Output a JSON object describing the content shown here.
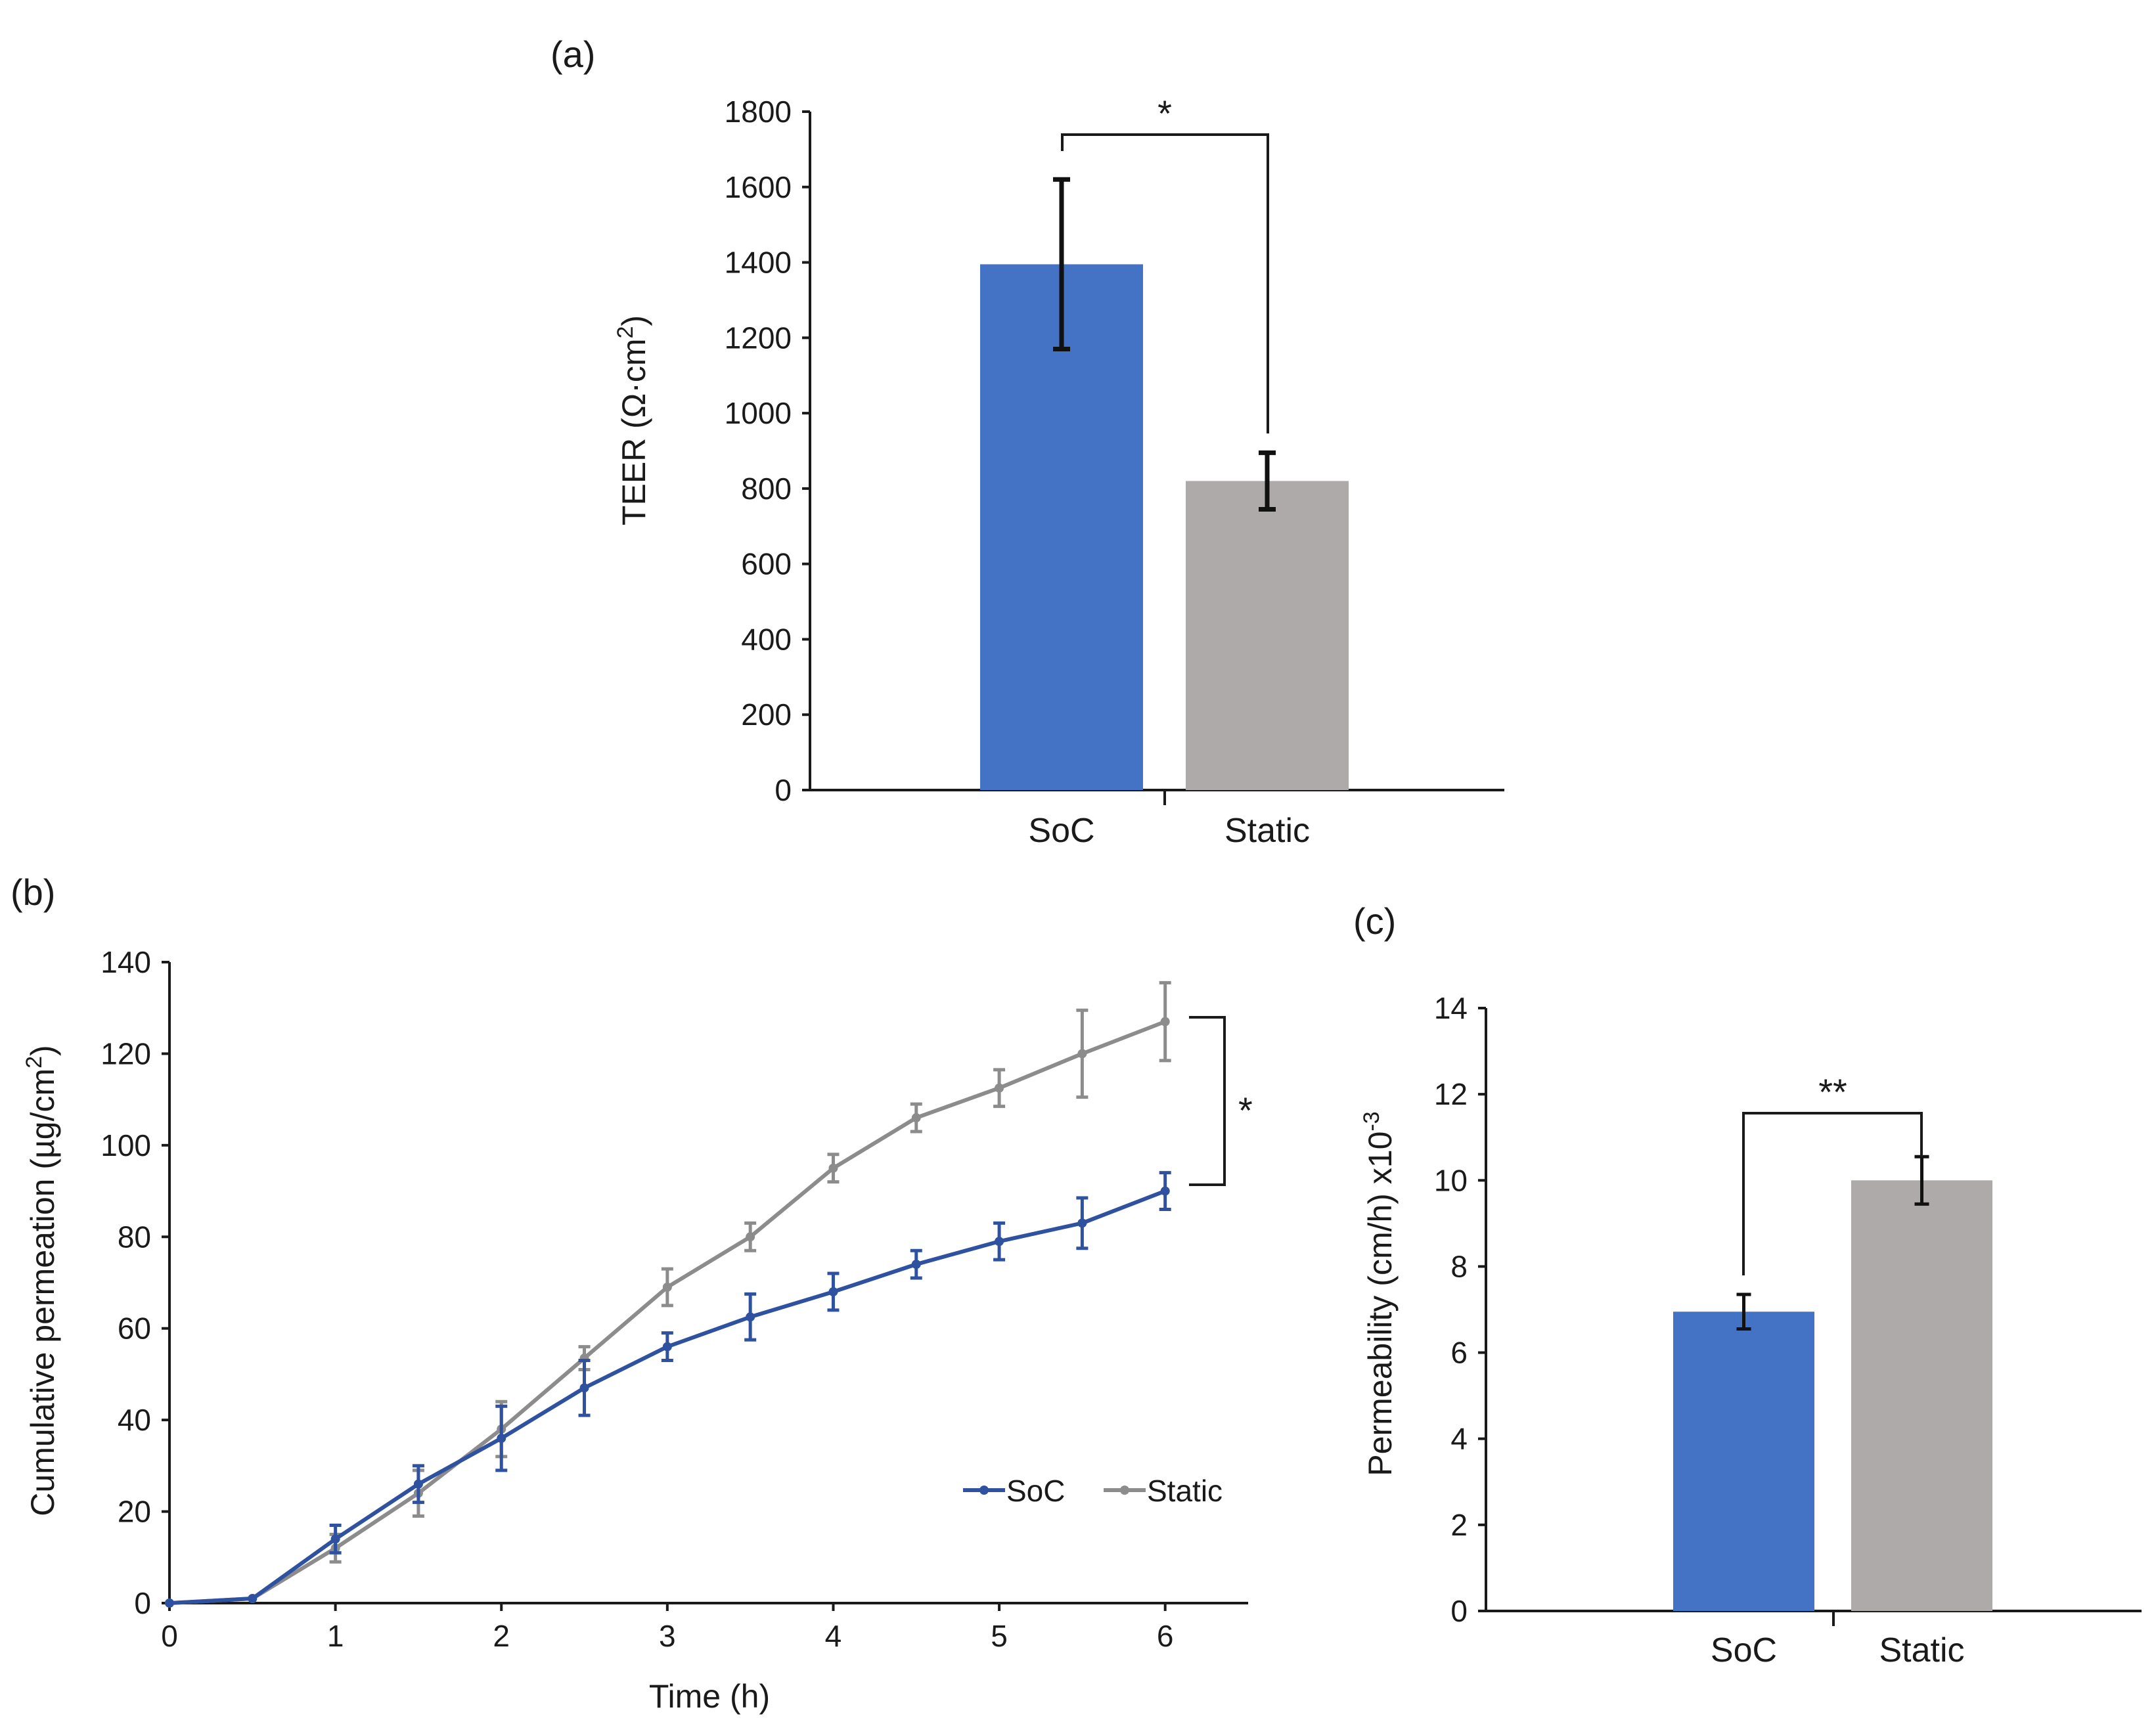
{
  "chart_data": [
    {
      "id": "a",
      "panel_label": "(a)",
      "type": "bar",
      "ylabel": "TEER (Ω·cm",
      "ylabel_sup": "2",
      "ylabel_close": ")",
      "ylim": [
        0,
        1800
      ],
      "yticks": [
        0,
        200,
        400,
        600,
        800,
        1000,
        1200,
        1400,
        1600,
        1800
      ],
      "categories": [
        "SoC",
        "Static"
      ],
      "values": [
        1395,
        820
      ],
      "errors": [
        225,
        75
      ],
      "colors": [
        "#4472c4",
        "#aeaaaa"
      ],
      "significance": "*"
    },
    {
      "id": "b",
      "panel_label": "(b)",
      "type": "line",
      "xlabel": "Time (h)",
      "ylabel": "Cumulative permeation (µg/cm",
      "ylabel_sup": "2",
      "ylabel_close": ")",
      "xlim": [
        0,
        6.5
      ],
      "ylim": [
        0,
        140
      ],
      "xticks": [
        0,
        1,
        2,
        3,
        4,
        5,
        6
      ],
      "yticks": [
        0,
        20,
        40,
        60,
        80,
        100,
        120,
        140
      ],
      "x": [
        0,
        0.5,
        1,
        1.5,
        2,
        2.5,
        3,
        3.5,
        4,
        4.5,
        5,
        5.5,
        6
      ],
      "series": [
        {
          "name": "SoC",
          "color": "#2f52a0",
          "values": [
            0,
            1,
            14,
            26,
            36,
            47,
            56,
            62.5,
            68,
            74,
            79,
            83,
            90
          ],
          "errors": [
            0,
            0.3,
            3,
            4,
            7,
            6,
            3,
            5,
            4,
            3,
            4,
            5.5,
            4
          ]
        },
        {
          "name": "Static",
          "color": "#8c8c8c",
          "values": [
            0,
            1,
            12,
            24,
            38,
            53.5,
            69,
            80,
            95,
            106,
            112.5,
            120,
            127
          ],
          "errors": [
            0,
            0.3,
            3,
            5,
            6,
            2.5,
            4,
            3,
            3,
            3,
            4,
            9.5,
            8.5
          ]
        }
      ],
      "significance": "*"
    },
    {
      "id": "c",
      "panel_label": "(c)",
      "type": "bar",
      "ylabel": "Permeability (cm/h) x10",
      "ylabel_sup": "-3",
      "ylim": [
        0,
        14
      ],
      "yticks": [
        0,
        2,
        4,
        6,
        8,
        10,
        12,
        14
      ],
      "categories": [
        "SoC",
        "Static"
      ],
      "values": [
        6.95,
        10
      ],
      "errors": [
        0.4,
        0.55
      ],
      "colors": [
        "#4472c4",
        "#aeaaaa"
      ],
      "significance": "**"
    }
  ]
}
